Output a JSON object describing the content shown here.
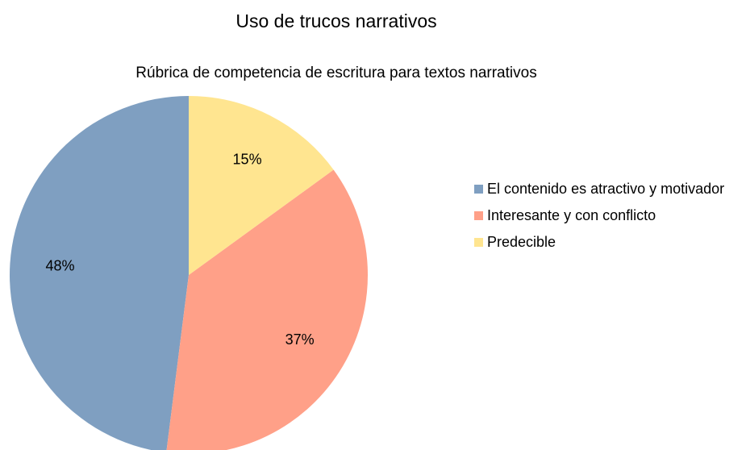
{
  "chart_data": {
    "type": "pie",
    "title": "Uso de trucos narrativos",
    "subtitle": "Rúbrica de competencia de escritura para textos narrativos",
    "categories": [
      "El contenido es atractivo y motivador",
      "Interesante y con conflicto",
      "Predecible"
    ],
    "values": [
      48,
      37,
      15
    ],
    "value_labels": [
      "48%",
      "37%",
      "15%"
    ],
    "colors": [
      "#7f9fc1",
      "#ffa088",
      "#ffe590"
    ],
    "legend": "right"
  }
}
